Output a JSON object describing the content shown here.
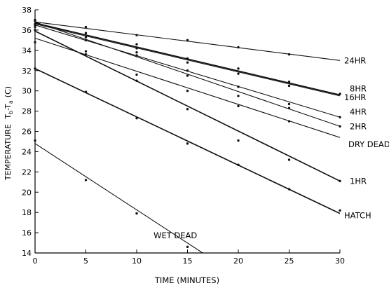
{
  "chart_data": {
    "type": "line",
    "xlabel": "TIME (MINUTES)",
    "ylabel": "TEMPERATURE",
    "ylabel_sub": "T",
    "ylabel_sub_b": "b",
    "ylabel_dash": "-",
    "ylabel_sub_a": "a",
    "ylabel_unit": "(C)",
    "xlim": [
      0,
      30
    ],
    "ylim": [
      14,
      38
    ],
    "x_ticks": [
      "0",
      "5",
      "10",
      "15",
      "20",
      "25",
      "30"
    ],
    "y_ticks": [
      "14",
      "16",
      "18",
      "20",
      "22",
      "24",
      "26",
      "28",
      "30",
      "32",
      "34",
      "36",
      "38"
    ],
    "grid": false,
    "series": [
      {
        "name": "24HR",
        "x": [
          0,
          30
        ],
        "y": [
          36.8,
          33.0
        ],
        "points": [
          [
            0,
            37.0
          ],
          [
            5,
            36.3
          ],
          [
            10,
            35.5
          ],
          [
            15,
            35.0
          ],
          [
            20,
            34.3
          ],
          [
            25,
            33.6
          ]
        ]
      },
      {
        "name": "8HR",
        "x": [
          0,
          30
        ],
        "y": [
          36.7,
          29.6
        ],
        "points": [
          [
            0,
            36.9
          ],
          [
            5,
            35.7
          ],
          [
            10,
            34.6
          ],
          [
            15,
            33.2
          ],
          [
            20,
            32.2
          ],
          [
            25,
            30.9
          ],
          [
            30,
            29.7
          ]
        ]
      },
      {
        "name": "16HR",
        "x": [
          0,
          30
        ],
        "y": [
          36.6,
          29.5
        ],
        "points": [
          [
            0,
            36.6
          ],
          [
            5,
            35.3
          ],
          [
            10,
            34.2
          ],
          [
            15,
            32.8
          ],
          [
            20,
            31.7
          ],
          [
            25,
            30.5
          ]
        ]
      },
      {
        "name": "4HR",
        "x": [
          0,
          30
        ],
        "y": [
          36.5,
          27.4
        ],
        "points": [
          [
            0,
            36.5
          ],
          [
            5,
            35.0
          ],
          [
            10,
            33.8
          ],
          [
            15,
            32.0
          ],
          [
            20,
            29.5
          ],
          [
            25,
            28.3
          ],
          [
            30,
            27.4
          ]
        ]
      },
      {
        "name": "2HR",
        "x": [
          0,
          30
        ],
        "y": [
          36.8,
          26.5
        ],
        "points": [
          [
            0,
            36.3
          ],
          [
            5,
            35.0
          ],
          [
            10,
            33.5
          ],
          [
            15,
            31.5
          ],
          [
            20,
            30.4
          ],
          [
            25,
            28.7
          ],
          [
            30,
            26.5
          ]
        ]
      },
      {
        "name": "DRY DEAD",
        "x": [
          0,
          30
        ],
        "y": [
          35.2,
          25.4
        ],
        "points": [
          [
            0,
            34.8
          ],
          [
            5,
            33.9
          ],
          [
            10,
            31.6
          ],
          [
            15,
            30.0
          ],
          [
            20,
            28.5
          ],
          [
            25,
            27.0
          ]
        ]
      },
      {
        "name": "1HR",
        "x": [
          0,
          30
        ],
        "y": [
          35.9,
          21.1
        ],
        "points": [
          [
            0,
            36.0
          ],
          [
            5,
            33.6
          ],
          [
            10,
            31.0
          ],
          [
            15,
            28.2
          ],
          [
            20,
            25.1
          ],
          [
            25,
            23.2
          ],
          [
            30,
            21.1
          ]
        ]
      },
      {
        "name": "HATCH",
        "x": [
          0,
          30
        ],
        "y": [
          32.2,
          17.9
        ],
        "points": [
          [
            0,
            32.2
          ],
          [
            5,
            29.9
          ],
          [
            10,
            27.3
          ],
          [
            15,
            24.8
          ],
          [
            20,
            22.7
          ],
          [
            25,
            20.3
          ],
          [
            30,
            18.2
          ]
        ]
      },
      {
        "name": "WET DEAD",
        "x": [
          0,
          16.5
        ],
        "y": [
          24.8,
          14.0
        ],
        "points": [
          [
            0,
            25.1
          ],
          [
            5,
            21.2
          ],
          [
            10,
            17.9
          ],
          [
            15,
            14.6
          ]
        ]
      }
    ]
  }
}
